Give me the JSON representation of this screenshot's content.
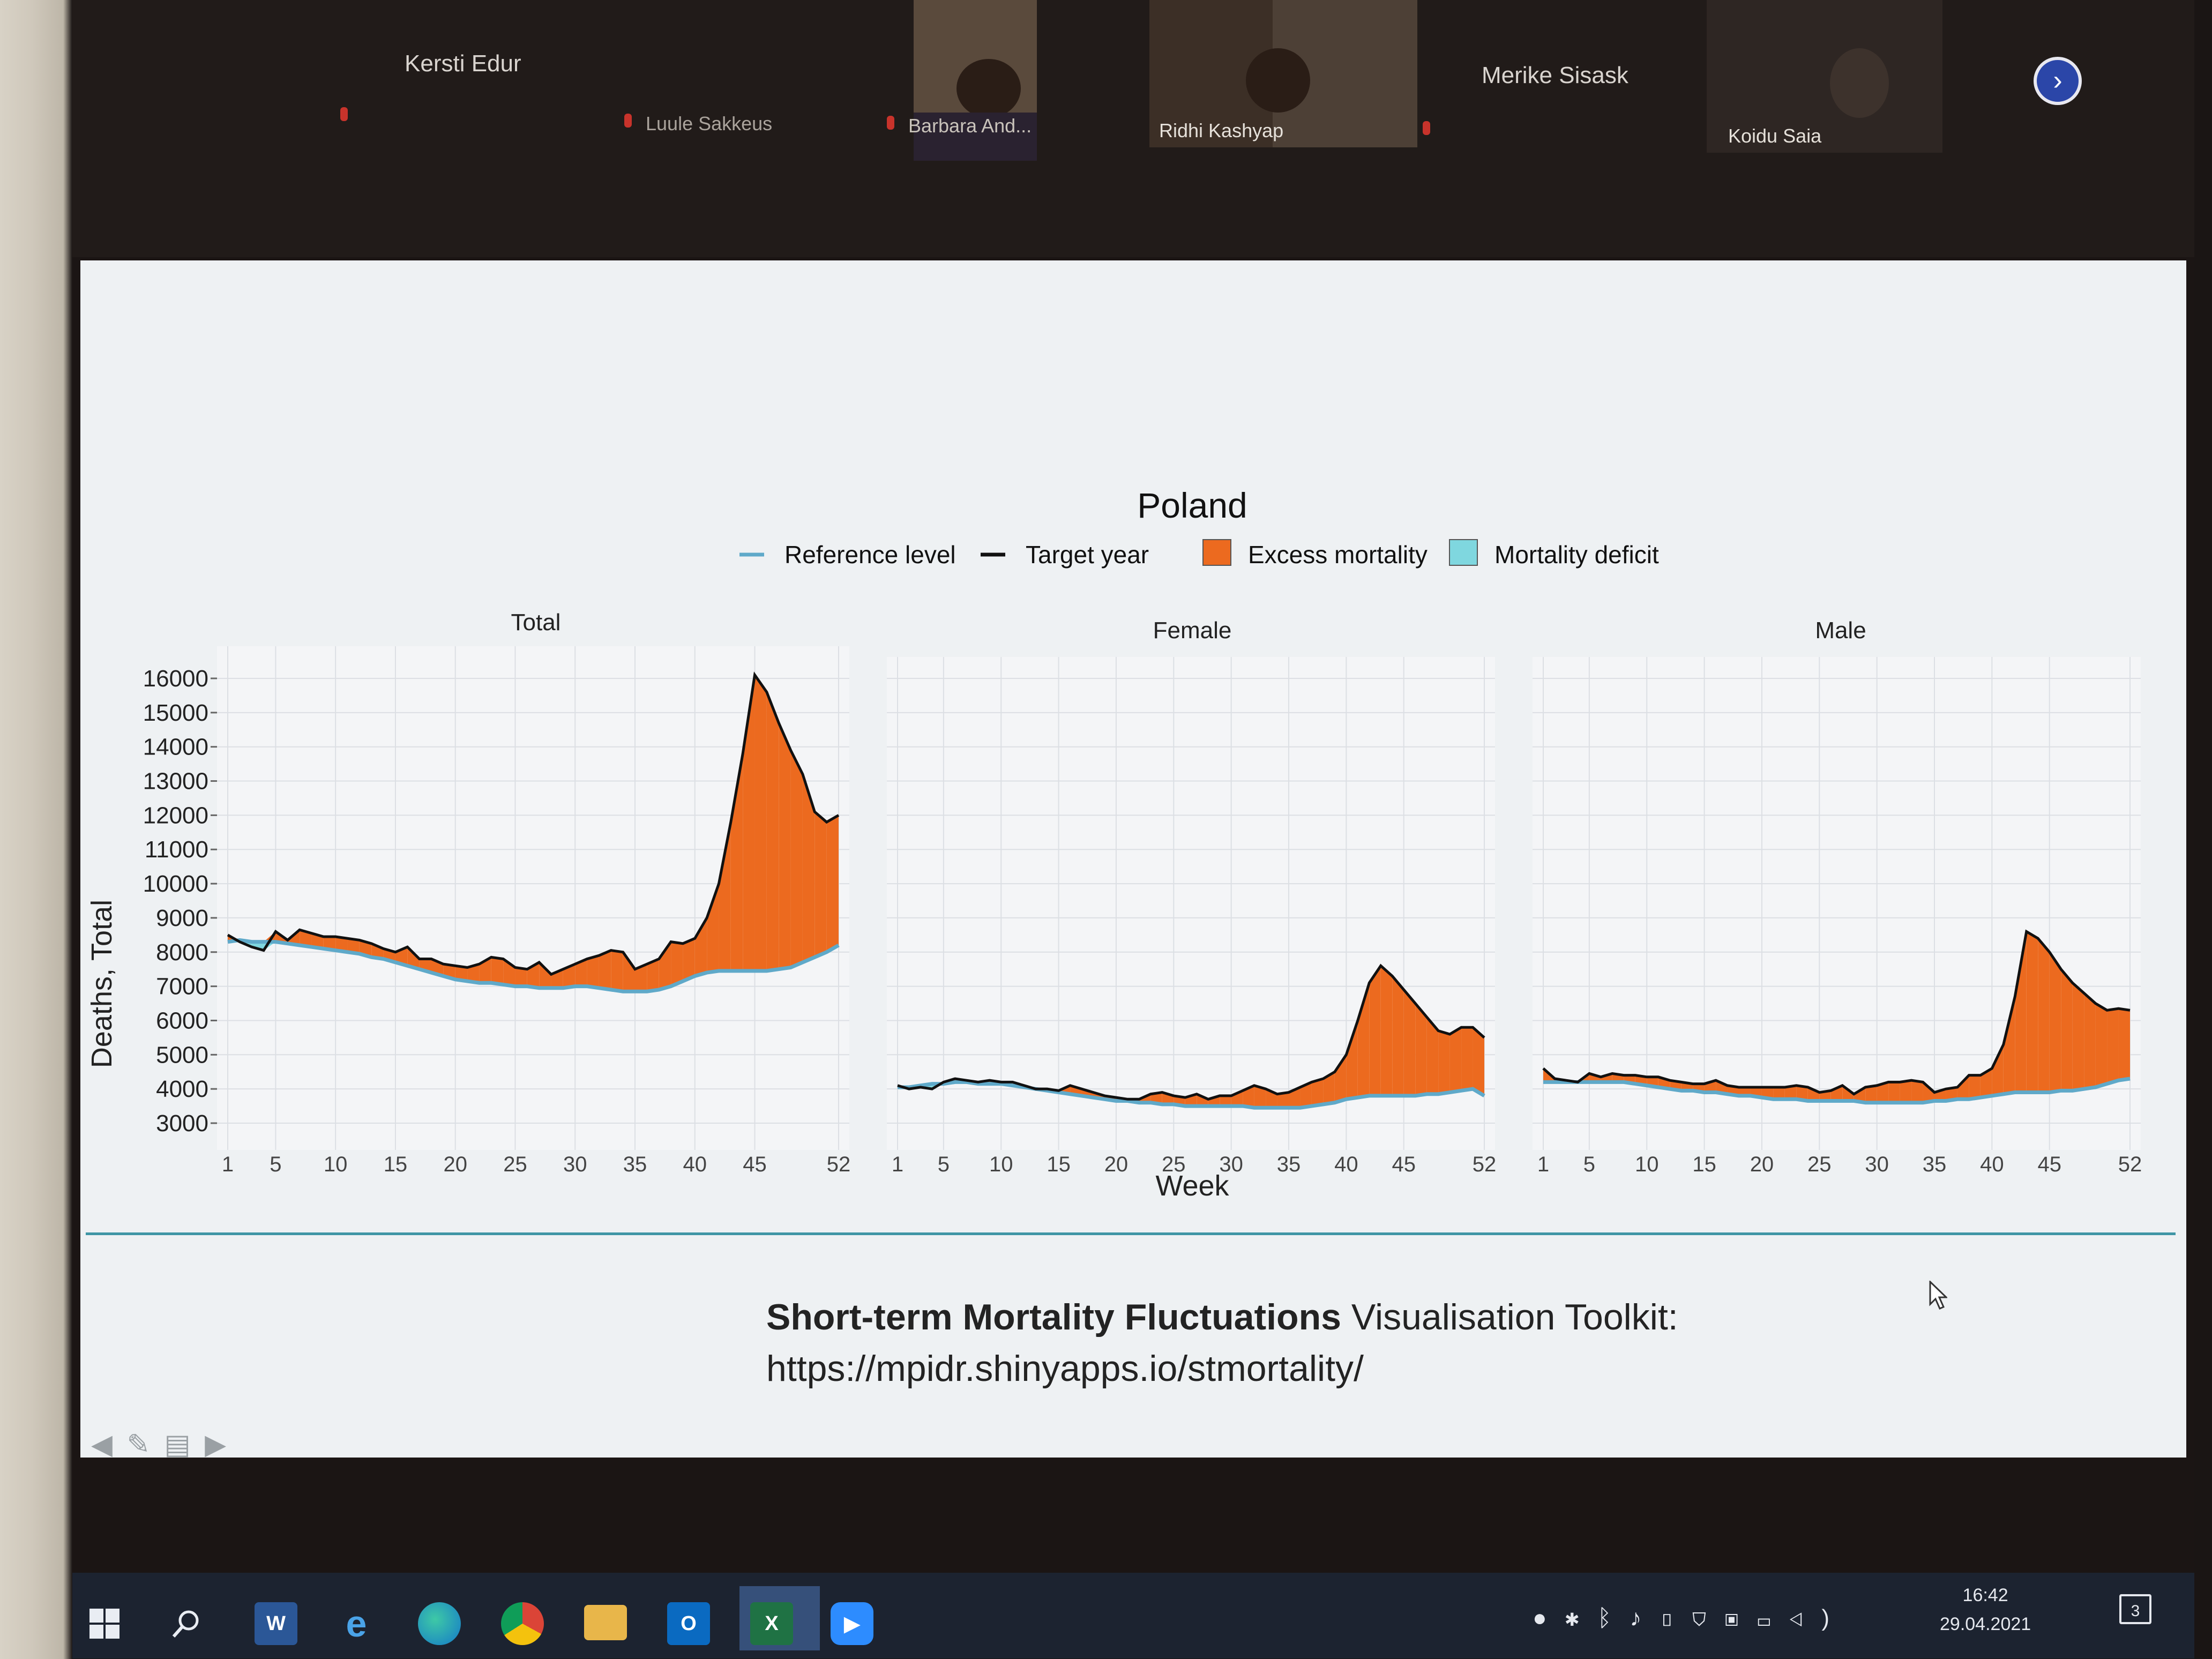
{
  "participants": [
    {
      "name": "Kersti Edur"
    },
    {
      "name": "Luule Sakkeus"
    },
    {
      "name": "Barbara And..."
    },
    {
      "name": "Ridhi Kashyap"
    },
    {
      "name": "Merike Sisask"
    },
    {
      "name": "Koidu Saia"
    }
  ],
  "slide": {
    "credit_bold": "Short-term Mortality Fluctuations",
    "credit_rest": " Visualisation Toolkit:",
    "credit_url": "https://mpidr.shinyapps.io/stmortality/"
  },
  "taskbar": {
    "time": "16:42",
    "date": "29.04.2021",
    "notifications": "3",
    "colors": {
      "bar": "#1c2330",
      "zoom": "#2d8cff",
      "excel": "#1f7244",
      "word": "#2b5797"
    }
  },
  "chart_data": {
    "type": "area",
    "title": "Poland",
    "ylabel": "Deaths, Total",
    "xlabel": "Week",
    "ylim": [
      3000,
      16000
    ],
    "xlim": [
      1,
      52
    ],
    "grid": true,
    "legend": {
      "position": "top",
      "entries": [
        "Reference level",
        "Target year",
        "Excess mortality",
        "Mortality deficit"
      ]
    },
    "colors": {
      "reference": "#5fa9c9",
      "target": "#111111",
      "excess": "#ec6a1f",
      "deficit": "#7fd7df"
    },
    "y_ticks": [
      "3000",
      "4000",
      "5000",
      "6000",
      "7000",
      "8000",
      "9000",
      "10000",
      "11000",
      "12000",
      "13000",
      "14000",
      "15000",
      "16000"
    ],
    "x_tick_values": [
      1,
      5,
      10,
      15,
      20,
      25,
      30,
      35,
      40,
      45,
      52
    ],
    "x_tick_labels": [
      "1",
      "5",
      "10",
      "15",
      "20",
      "25",
      "30",
      "35",
      "40",
      "45",
      "52"
    ],
    "x": [
      1,
      2,
      3,
      4,
      5,
      6,
      7,
      8,
      9,
      10,
      11,
      12,
      13,
      14,
      15,
      16,
      17,
      18,
      19,
      20,
      21,
      22,
      23,
      24,
      25,
      26,
      27,
      28,
      29,
      30,
      31,
      32,
      33,
      34,
      35,
      36,
      37,
      38,
      39,
      40,
      41,
      42,
      43,
      44,
      45,
      46,
      47,
      48,
      49,
      50,
      51,
      52
    ],
    "panels": [
      {
        "name": "Total",
        "reference": [
          8300,
          8350,
          8300,
          8300,
          8300,
          8250,
          8200,
          8150,
          8100,
          8050,
          8000,
          7950,
          7850,
          7800,
          7700,
          7600,
          7500,
          7400,
          7300,
          7200,
          7150,
          7100,
          7100,
          7050,
          7000,
          7000,
          6950,
          6950,
          6950,
          7000,
          7000,
          6950,
          6900,
          6850,
          6850,
          6850,
          6900,
          7000,
          7150,
          7300,
          7400,
          7450,
          7450,
          7450,
          7450,
          7450,
          7500,
          7550,
          7700,
          7850,
          8000,
          8200
        ],
        "target": [
          8500,
          8300,
          8150,
          8050,
          8600,
          8350,
          8650,
          8550,
          8450,
          8450,
          8400,
          8350,
          8250,
          8100,
          8000,
          8150,
          7800,
          7800,
          7650,
          7600,
          7550,
          7650,
          7850,
          7800,
          7550,
          7500,
          7700,
          7350,
          7500,
          7650,
          7800,
          7900,
          8050,
          8000,
          7500,
          7650,
          7800,
          8300,
          8250,
          8400,
          9000,
          10000,
          11800,
          13800,
          16100,
          15600,
          14700,
          13900,
          13200,
          12100,
          11800,
          12000
        ]
      },
      {
        "name": "Female",
        "reference": [
          4050,
          4050,
          4100,
          4150,
          4150,
          4200,
          4200,
          4150,
          4150,
          4150,
          4100,
          4050,
          4000,
          3950,
          3900,
          3850,
          3800,
          3750,
          3700,
          3650,
          3650,
          3600,
          3600,
          3550,
          3550,
          3500,
          3500,
          3500,
          3500,
          3500,
          3500,
          3450,
          3450,
          3450,
          3450,
          3450,
          3500,
          3550,
          3600,
          3700,
          3750,
          3800,
          3800,
          3800,
          3800,
          3800,
          3850,
          3850,
          3900,
          3950,
          4000,
          3800
        ],
        "target": [
          4100,
          4000,
          4050,
          4000,
          4200,
          4300,
          4250,
          4200,
          4250,
          4200,
          4200,
          4100,
          4000,
          4000,
          3950,
          4100,
          4000,
          3900,
          3800,
          3750,
          3700,
          3700,
          3850,
          3900,
          3800,
          3750,
          3850,
          3700,
          3800,
          3800,
          3950,
          4100,
          4000,
          3850,
          3900,
          4050,
          4200,
          4300,
          4500,
          5000,
          6000,
          7100,
          7600,
          7300,
          6900,
          6500,
          6100,
          5700,
          5600,
          5800,
          5800,
          5500
        ]
      },
      {
        "name": "Male",
        "reference": [
          4200,
          4200,
          4200,
          4200,
          4200,
          4200,
          4200,
          4200,
          4150,
          4100,
          4050,
          4000,
          3950,
          3950,
          3900,
          3900,
          3850,
          3800,
          3800,
          3750,
          3700,
          3700,
          3700,
          3650,
          3650,
          3650,
          3650,
          3650,
          3600,
          3600,
          3600,
          3600,
          3600,
          3600,
          3650,
          3650,
          3700,
          3700,
          3750,
          3800,
          3850,
          3900,
          3900,
          3900,
          3900,
          3950,
          3950,
          4000,
          4050,
          4150,
          4250,
          4300
        ],
        "target": [
          4600,
          4300,
          4250,
          4200,
          4450,
          4350,
          4450,
          4400,
          4400,
          4350,
          4350,
          4250,
          4200,
          4150,
          4150,
          4250,
          4100,
          4050,
          4050,
          4050,
          4050,
          4050,
          4100,
          4050,
          3900,
          3950,
          4100,
          3850,
          4050,
          4100,
          4200,
          4200,
          4250,
          4200,
          3900,
          4000,
          4050,
          4400,
          4400,
          4600,
          5300,
          6700,
          8600,
          8400,
          8000,
          7500,
          7100,
          6800,
          6500,
          6300,
          6350,
          6300
        ]
      }
    ]
  }
}
